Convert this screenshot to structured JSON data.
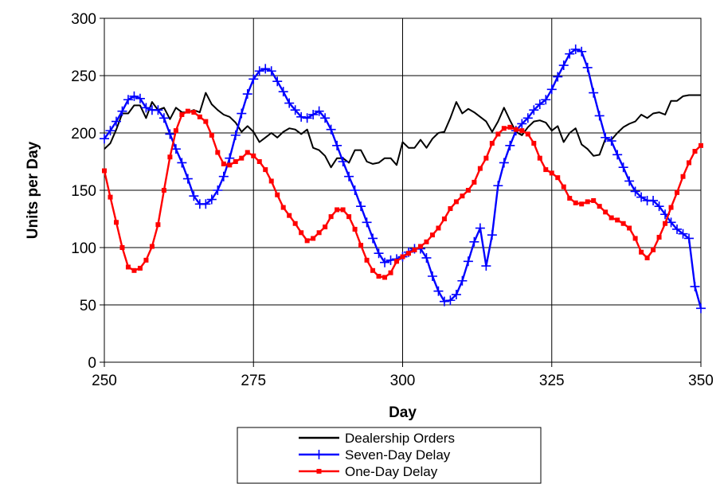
{
  "chart_data": {
    "type": "line",
    "title": "",
    "xlabel": "Day",
    "ylabel": "Units per Day",
    "xlim": [
      250,
      350
    ],
    "ylim": [
      0,
      300
    ],
    "x_ticks": [
      250,
      275,
      300,
      325,
      350
    ],
    "y_ticks": [
      0,
      50,
      100,
      150,
      200,
      250,
      300
    ],
    "grid": true,
    "legend_position": "bottom-center",
    "series": [
      {
        "name": "Dealership Orders",
        "color": "#000000",
        "marker": "none",
        "x": [
          250,
          251,
          252,
          253,
          254,
          255,
          256,
          257,
          258,
          259,
          260,
          261,
          262,
          263,
          264,
          265,
          266,
          267,
          268,
          269,
          270,
          271,
          272,
          273,
          274,
          275,
          276,
          277,
          278,
          279,
          280,
          281,
          282,
          283,
          284,
          285,
          286,
          287,
          288,
          289,
          290,
          291,
          292,
          293,
          294,
          295,
          296,
          297,
          298,
          299,
          300,
          301,
          302,
          303,
          304,
          305,
          306,
          307,
          308,
          309,
          310,
          311,
          312,
          313,
          314,
          315,
          316,
          317,
          318,
          319,
          320,
          321,
          322,
          323,
          324,
          325,
          326,
          327,
          328,
          329,
          330,
          331,
          332,
          333,
          334,
          335,
          336,
          337,
          338,
          339,
          340,
          341,
          342,
          343,
          344,
          345,
          346,
          347,
          348,
          349,
          350
        ],
        "y": [
          186,
          191,
          203,
          217,
          217,
          224,
          224,
          213,
          227,
          220,
          222,
          212,
          222,
          218,
          218,
          220,
          218,
          235,
          225,
          220,
          216,
          214,
          209,
          201,
          206,
          201,
          192,
          196,
          200,
          196,
          201,
          204,
          203,
          199,
          203,
          187,
          185,
          180,
          170,
          178,
          178,
          174,
          185,
          185,
          175,
          173,
          174,
          178,
          178,
          172,
          192,
          187,
          187,
          194,
          187,
          195,
          200,
          201,
          213,
          227,
          217,
          221,
          218,
          214,
          210,
          201,
          210,
          222,
          211,
          201,
          198,
          205,
          210,
          211,
          209,
          202,
          206,
          192,
          200,
          204,
          190,
          186,
          180,
          181,
          195,
          194,
          200,
          205,
          208,
          210,
          216,
          213,
          217,
          218,
          216,
          228,
          228,
          232,
          233,
          233,
          233
        ]
      },
      {
        "name": "Seven-Day Delay",
        "color": "#0000ff",
        "marker": "plus",
        "x": [
          250,
          251,
          252,
          253,
          254,
          255,
          256,
          257,
          258,
          259,
          260,
          261,
          262,
          263,
          264,
          265,
          266,
          267,
          268,
          269,
          270,
          271,
          272,
          273,
          274,
          275,
          276,
          277,
          278,
          279,
          280,
          281,
          282,
          283,
          284,
          285,
          286,
          287,
          288,
          289,
          290,
          291,
          292,
          293,
          294,
          295,
          296,
          297,
          298,
          299,
          300,
          301,
          302,
          303,
          304,
          305,
          306,
          307,
          308,
          309,
          310,
          311,
          312,
          313,
          314,
          315,
          316,
          317,
          318,
          319,
          320,
          321,
          322,
          323,
          324,
          325,
          326,
          327,
          328,
          329,
          330,
          331,
          332,
          333,
          334,
          335,
          336,
          337,
          338,
          339,
          340,
          341,
          342,
          343,
          344,
          345,
          346,
          347,
          348,
          349,
          350
        ],
        "y": [
          195,
          202,
          210,
          219,
          229,
          232,
          230,
          222,
          220,
          220,
          213,
          199,
          186,
          174,
          160,
          145,
          138,
          138,
          142,
          150,
          162,
          178,
          198,
          217,
          234,
          247,
          254,
          256,
          254,
          245,
          236,
          226,
          220,
          214,
          213,
          216,
          219,
          213,
          203,
          189,
          175,
          162,
          150,
          136,
          122,
          108,
          95,
          87,
          89,
          90,
          92,
          96,
          99,
          99,
          91,
          75,
          62,
          53,
          54,
          59,
          71,
          88,
          105,
          117,
          84,
          111,
          154,
          174,
          189,
          202,
          208,
          213,
          220,
          225,
          229,
          238,
          249,
          259,
          269,
          273,
          271,
          257,
          235,
          215,
          196,
          193,
          181,
          170,
          158,
          149,
          144,
          141,
          141,
          136,
          129,
          122,
          116,
          112,
          108,
          66,
          47
        ]
      },
      {
        "name": "One-Day Delay",
        "color": "#ff0000",
        "marker": "square",
        "x": [
          250,
          251,
          252,
          253,
          254,
          255,
          256,
          257,
          258,
          259,
          260,
          261,
          262,
          263,
          264,
          265,
          266,
          267,
          268,
          269,
          270,
          271,
          272,
          273,
          274,
          275,
          276,
          277,
          278,
          279,
          280,
          281,
          282,
          283,
          284,
          285,
          286,
          287,
          288,
          289,
          290,
          291,
          292,
          293,
          294,
          295,
          296,
          297,
          298,
          299,
          300,
          301,
          302,
          303,
          304,
          305,
          306,
          307,
          308,
          309,
          310,
          311,
          312,
          313,
          314,
          315,
          316,
          317,
          318,
          319,
          320,
          321,
          322,
          323,
          324,
          325,
          326,
          327,
          328,
          329,
          330,
          331,
          332,
          333,
          334,
          335,
          336,
          337,
          338,
          339,
          340,
          341,
          342,
          343,
          344,
          345,
          346,
          347,
          348,
          349,
          350
        ],
        "y": [
          167,
          144,
          122,
          100,
          83,
          80,
          82,
          89,
          101,
          120,
          150,
          179,
          202,
          216,
          219,
          218,
          214,
          210,
          198,
          183,
          173,
          172,
          175,
          178,
          183,
          180,
          175,
          168,
          158,
          146,
          135,
          128,
          121,
          113,
          106,
          108,
          113,
          118,
          127,
          133,
          133,
          127,
          116,
          102,
          89,
          80,
          75,
          74,
          78,
          88,
          92,
          95,
          98,
          101,
          105,
          111,
          117,
          125,
          134,
          140,
          145,
          150,
          157,
          169,
          178,
          191,
          199,
          204,
          205,
          203,
          202,
          199,
          191,
          178,
          168,
          165,
          161,
          153,
          143,
          139,
          138,
          140,
          141,
          136,
          131,
          126,
          124,
          121,
          117,
          108,
          96,
          91,
          98,
          109,
          121,
          135,
          148,
          162,
          174,
          184,
          189
        ]
      }
    ]
  }
}
